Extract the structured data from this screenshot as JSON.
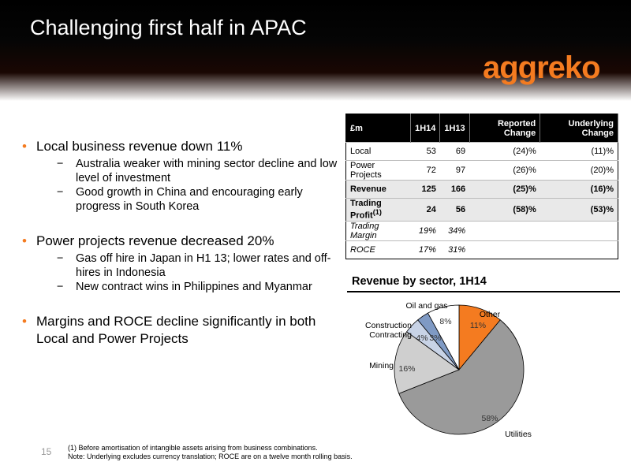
{
  "title": "Challenging first half in APAC",
  "logo": "aggreko",
  "bullets": [
    {
      "text": "Local business revenue down 11%",
      "sub": [
        "Australia weaker with mining sector decline and low level of investment",
        "Good growth in China and encouraging early progress in South Korea"
      ]
    },
    {
      "text": "Power projects revenue decreased 20%",
      "sub": [
        "Gas off hire in Japan in H1 13; lower rates and off-hires in Indonesia",
        "New contract wins in Philippines and Myanmar"
      ]
    },
    {
      "text": "Margins and ROCE decline significantly in both Local and Power Projects",
      "sub": []
    }
  ],
  "table": {
    "headers": [
      "£m",
      "1H14",
      "1H13",
      "Reported Change",
      "Underlying Change"
    ],
    "rows": [
      {
        "cells": [
          "Local",
          "53",
          "69",
          "(24)%",
          "(11)%"
        ],
        "style": "normal"
      },
      {
        "cells": [
          "Power Projects",
          "72",
          "97",
          "(26)%",
          "(20)%"
        ],
        "style": "normal"
      },
      {
        "cells": [
          "Revenue",
          "125",
          "166",
          "(25)%",
          "(16)%"
        ],
        "style": "bold"
      },
      {
        "cells": [
          "Trading Profit",
          "24",
          "56",
          "(58)%",
          "(53)%"
        ],
        "style": "bold",
        "sup": "(1)"
      },
      {
        "cells": [
          "Trading Margin",
          "19%",
          "34%",
          "",
          ""
        ],
        "style": "ital"
      },
      {
        "cells": [
          "ROCE",
          "17%",
          "31%",
          "",
          ""
        ],
        "style": "ital"
      }
    ]
  },
  "chart_data": {
    "type": "pie",
    "title": "Revenue by sector, 1H14",
    "slices": [
      {
        "name": "Other",
        "value": 11,
        "label": "11%",
        "color": "#f47b20"
      },
      {
        "name": "Utilities",
        "value": 58,
        "label": "58%",
        "color": "#9a9a9a"
      },
      {
        "name": "Mining",
        "value": 16,
        "label": "16%",
        "color": "#cfcfcf"
      },
      {
        "name": "Construction Contracting",
        "value": 4,
        "label": "4%",
        "color": "#c8d3e6"
      },
      {
        "name": "Construction Contracting",
        "value": 3,
        "label": "3%",
        "color": "#7f9ac4"
      },
      {
        "name": "Oil and gas",
        "value": 8,
        "label": "8%",
        "color": "#ffffff"
      }
    ]
  },
  "footnotes": {
    "line1": "(1)    Before amortisation of intangible assets arising from business combinations.",
    "line2": "Note: Underlying excludes currency translation; ROCE are on a twelve month rolling basis."
  },
  "page_number": "15"
}
